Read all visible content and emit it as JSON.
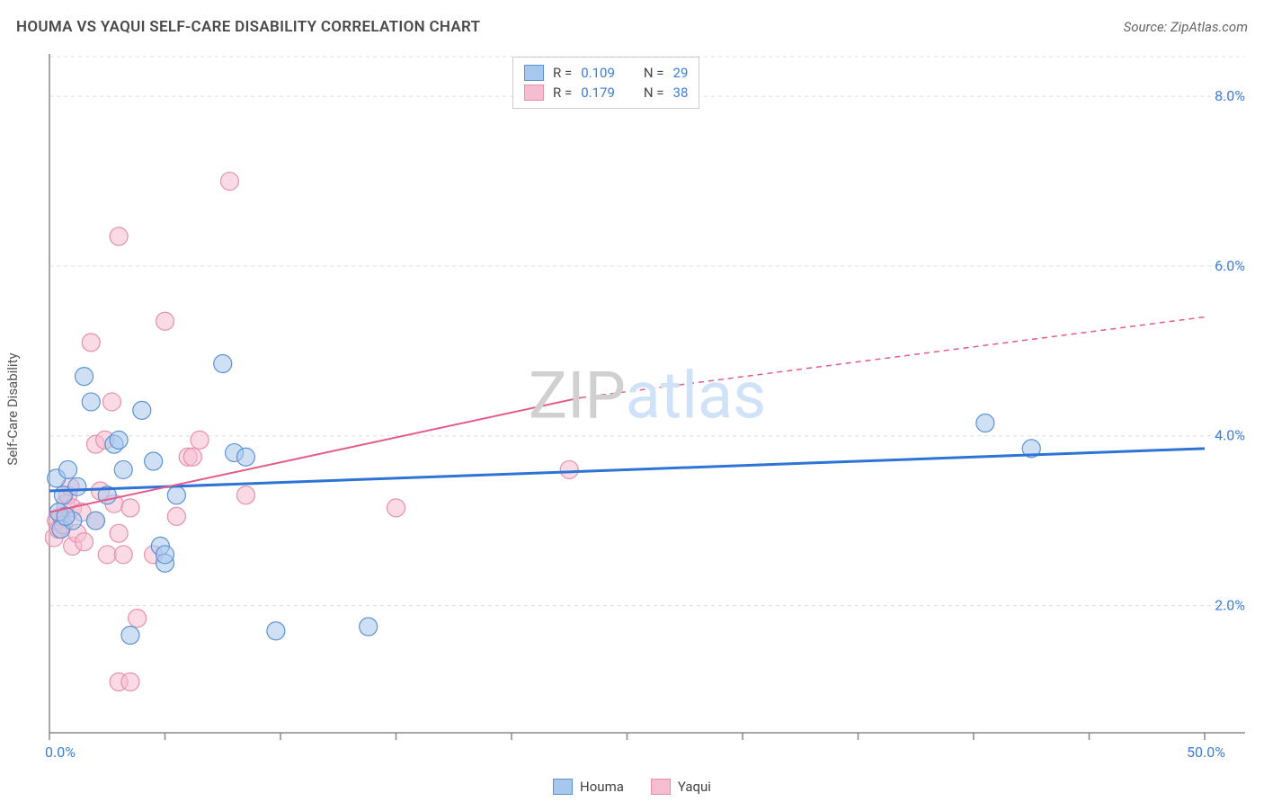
{
  "title": "HOUMA VS YAQUI SELF-CARE DISABILITY CORRELATION CHART",
  "source": "Source: ZipAtlas.com",
  "ylabel": "Self-Care Disability",
  "watermark": {
    "part1": "ZIP",
    "part2": "atlas"
  },
  "chart": {
    "type": "scatter",
    "xlim": [
      0,
      50
    ],
    "ylim": [
      0.5,
      8.5
    ],
    "xtick_positions": [
      0,
      5,
      10,
      15,
      20,
      25,
      30,
      35,
      40,
      45,
      50
    ],
    "xtick_labels": {
      "0": "0.0%",
      "50": "50.0%"
    },
    "ytick_positions": [
      2,
      4,
      6,
      8
    ],
    "ytick_labels": [
      "2.0%",
      "4.0%",
      "6.0%",
      "8.0%"
    ],
    "grid_color": "#dddddd",
    "axis_color": "#888888",
    "tick_label_color": "#3b7dd8",
    "background_color": "#ffffff",
    "marker_radius": 10,
    "marker_opacity": 0.55,
    "series": [
      {
        "name": "Houma",
        "color_fill": "#a7c7ec",
        "color_stroke": "#5b93d4",
        "R": "0.109",
        "N": "29",
        "trend": {
          "y_at_x0": 3.35,
          "y_at_x50": 3.85,
          "color": "#2d74d6",
          "width": 3
        },
        "points": [
          [
            0.3,
            3.5
          ],
          [
            0.5,
            2.9
          ],
          [
            0.6,
            3.3
          ],
          [
            0.8,
            3.6
          ],
          [
            1.0,
            3.0
          ],
          [
            1.5,
            4.7
          ],
          [
            1.8,
            4.4
          ],
          [
            2.0,
            3.0
          ],
          [
            2.5,
            3.3
          ],
          [
            2.8,
            3.9
          ],
          [
            3.0,
            3.95
          ],
          [
            3.2,
            3.6
          ],
          [
            3.5,
            1.65
          ],
          [
            4.0,
            4.3
          ],
          [
            4.5,
            3.7
          ],
          [
            4.8,
            2.7
          ],
          [
            5.0,
            2.5
          ],
          [
            5.0,
            2.6
          ],
          [
            5.5,
            3.3
          ],
          [
            7.5,
            4.85
          ],
          [
            8.0,
            3.8
          ],
          [
            8.5,
            3.75
          ],
          [
            9.8,
            1.7
          ],
          [
            13.8,
            1.75
          ],
          [
            40.5,
            4.15
          ],
          [
            42.5,
            3.85
          ],
          [
            0.4,
            3.1
          ],
          [
            0.7,
            3.05
          ],
          [
            1.2,
            3.4
          ]
        ]
      },
      {
        "name": "Yaqui",
        "color_fill": "#f5bdd0",
        "color_stroke": "#e78fb0",
        "R": "0.179",
        "N": "38",
        "trend": {
          "y_at_x0": 3.1,
          "y_at_x23": 4.45,
          "y_at_x50": 5.4,
          "color": "#e55a8a",
          "width": 2
        },
        "points": [
          [
            0.2,
            2.8
          ],
          [
            0.3,
            3.0
          ],
          [
            0.4,
            2.9
          ],
          [
            0.5,
            3.05
          ],
          [
            0.6,
            2.95
          ],
          [
            0.7,
            3.2
          ],
          [
            0.8,
            3.3
          ],
          [
            0.9,
            3.4
          ],
          [
            1.0,
            2.7
          ],
          [
            1.0,
            3.15
          ],
          [
            1.2,
            2.85
          ],
          [
            1.4,
            3.1
          ],
          [
            1.5,
            2.75
          ],
          [
            1.8,
            5.1
          ],
          [
            2.0,
            3.9
          ],
          [
            2.2,
            3.35
          ],
          [
            2.4,
            3.95
          ],
          [
            2.5,
            2.6
          ],
          [
            2.7,
            4.4
          ],
          [
            2.8,
            3.2
          ],
          [
            3.0,
            6.35
          ],
          [
            3.0,
            2.85
          ],
          [
            3.2,
            2.6
          ],
          [
            3.5,
            3.15
          ],
          [
            3.8,
            1.85
          ],
          [
            3.0,
            1.1
          ],
          [
            3.5,
            1.1
          ],
          [
            4.5,
            2.6
          ],
          [
            5.0,
            5.35
          ],
          [
            5.5,
            3.05
          ],
          [
            6.0,
            3.75
          ],
          [
            6.2,
            3.75
          ],
          [
            6.5,
            3.95
          ],
          [
            7.8,
            7.0
          ],
          [
            8.5,
            3.3
          ],
          [
            15.0,
            3.15
          ],
          [
            22.5,
            3.6
          ],
          [
            2.0,
            3.0
          ]
        ]
      }
    ],
    "legend_stats": {
      "R_label": "R =",
      "N_label": "N ="
    },
    "x_legend": {
      "items": [
        "Houma",
        "Yaqui"
      ]
    }
  }
}
